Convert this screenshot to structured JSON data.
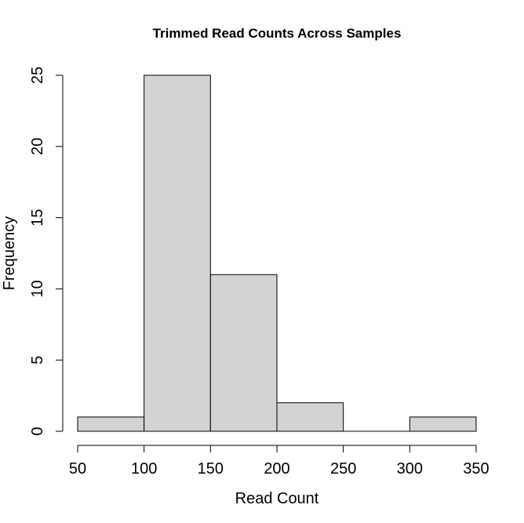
{
  "chart_data": {
    "type": "bar",
    "title": "Trimmed Read Counts Across Samples",
    "xlabel": "Read Count",
    "ylabel": "Frequency",
    "bins": [
      {
        "x0": 50,
        "x1": 100,
        "count": 1
      },
      {
        "x0": 100,
        "x1": 150,
        "count": 25
      },
      {
        "x0": 150,
        "x1": 200,
        "count": 11
      },
      {
        "x0": 200,
        "x1": 250,
        "count": 2
      },
      {
        "x0": 250,
        "x1": 300,
        "count": 0
      },
      {
        "x0": 300,
        "x1": 350,
        "count": 1
      }
    ],
    "xticks": [
      50,
      100,
      150,
      200,
      250,
      300,
      350
    ],
    "yticks": [
      0,
      5,
      10,
      15,
      20,
      25
    ],
    "xlim": [
      50,
      350
    ],
    "ylim": [
      0,
      25
    ],
    "bar_color": "#d3d3d3",
    "grid": false,
    "legend": "none"
  }
}
